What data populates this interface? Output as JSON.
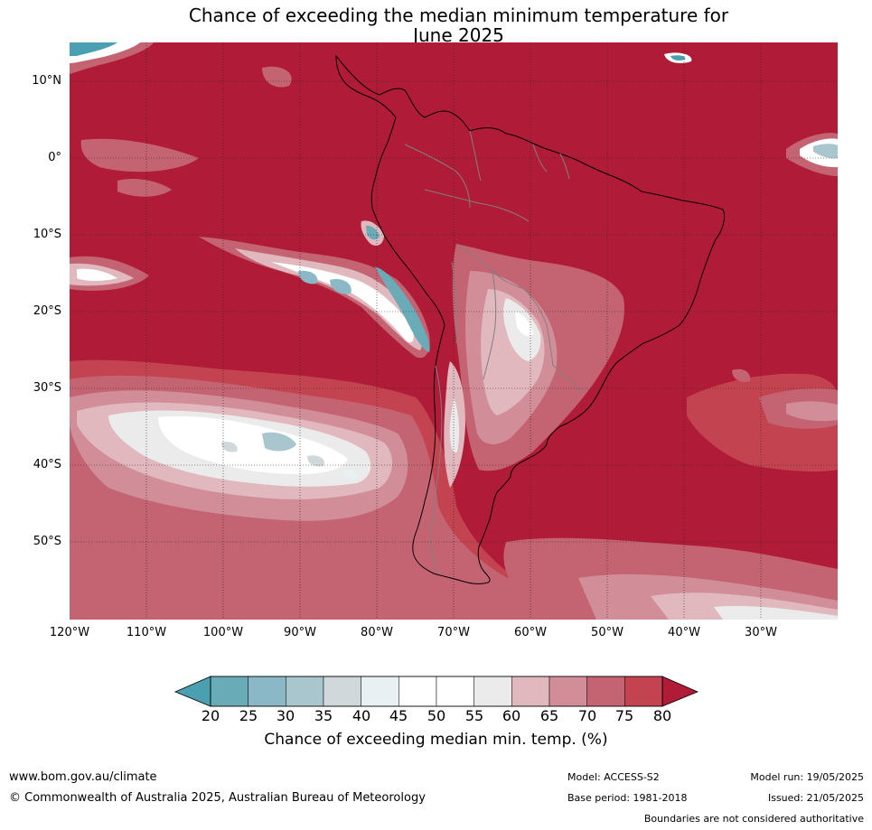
{
  "map": {
    "title_line1": "Chance of exceeding the median minimum temperature for",
    "title_line2": "June 2025",
    "lat_ticks": [
      "10°N",
      "0°",
      "10°S",
      "20°S",
      "30°S",
      "40°S",
      "50°S"
    ],
    "lon_ticks": [
      "120°W",
      "110°W",
      "100°W",
      "90°W",
      "80°W",
      "70°W",
      "60°W",
      "50°W",
      "40°W",
      "30°W"
    ],
    "extent": {
      "lon_min": -120,
      "lon_max": -20,
      "lat_min": -60,
      "lat_max": 15
    },
    "colors": {
      "ocean_base": "#b01c37",
      "land": "#b01c37",
      "coastline": "#000000",
      "borders": "#808080",
      "grid": "#222222"
    },
    "colorbar": {
      "label": "Chance of exceeding median min. temp. (%)",
      "ticks": [
        "20",
        "25",
        "30",
        "35",
        "40",
        "45",
        "50",
        "55",
        "60",
        "65",
        "70",
        "75",
        "80"
      ],
      "low_extend_color": "#4aa0b0",
      "high_extend_color": "#b01c37",
      "bins": [
        {
          "range": "20-25",
          "color": "#6aabb8"
        },
        {
          "range": "25-30",
          "color": "#8ab8c6"
        },
        {
          "range": "30-35",
          "color": "#a9c5cd"
        },
        {
          "range": "35-40",
          "color": "#d1d8db"
        },
        {
          "range": "40-45",
          "color": "#e9f0f3"
        },
        {
          "range": "45-50",
          "color": "#ffffff"
        },
        {
          "range": "50-55",
          "color": "#ffffff"
        },
        {
          "range": "55-60",
          "color": "#ebebeb"
        },
        {
          "range": "60-65",
          "color": "#e0b8be"
        },
        {
          "range": "65-70",
          "color": "#d18e98"
        },
        {
          "range": "70-75",
          "color": "#c46473"
        },
        {
          "range": "75-80",
          "color": "#c34450"
        }
      ]
    }
  },
  "footer": {
    "website": "www.bom.gov.au/climate",
    "copyright": "© Commonwealth of Australia 2025, Australian Bureau of Meteorology",
    "model": "Model: ACCESS-S2",
    "base_period": "Base period: 1981-2018",
    "model_run": "Model run: 19/05/2025",
    "issued": "Issued: 21/05/2025",
    "disclaimer": "Boundaries are not considered authoritative"
  }
}
